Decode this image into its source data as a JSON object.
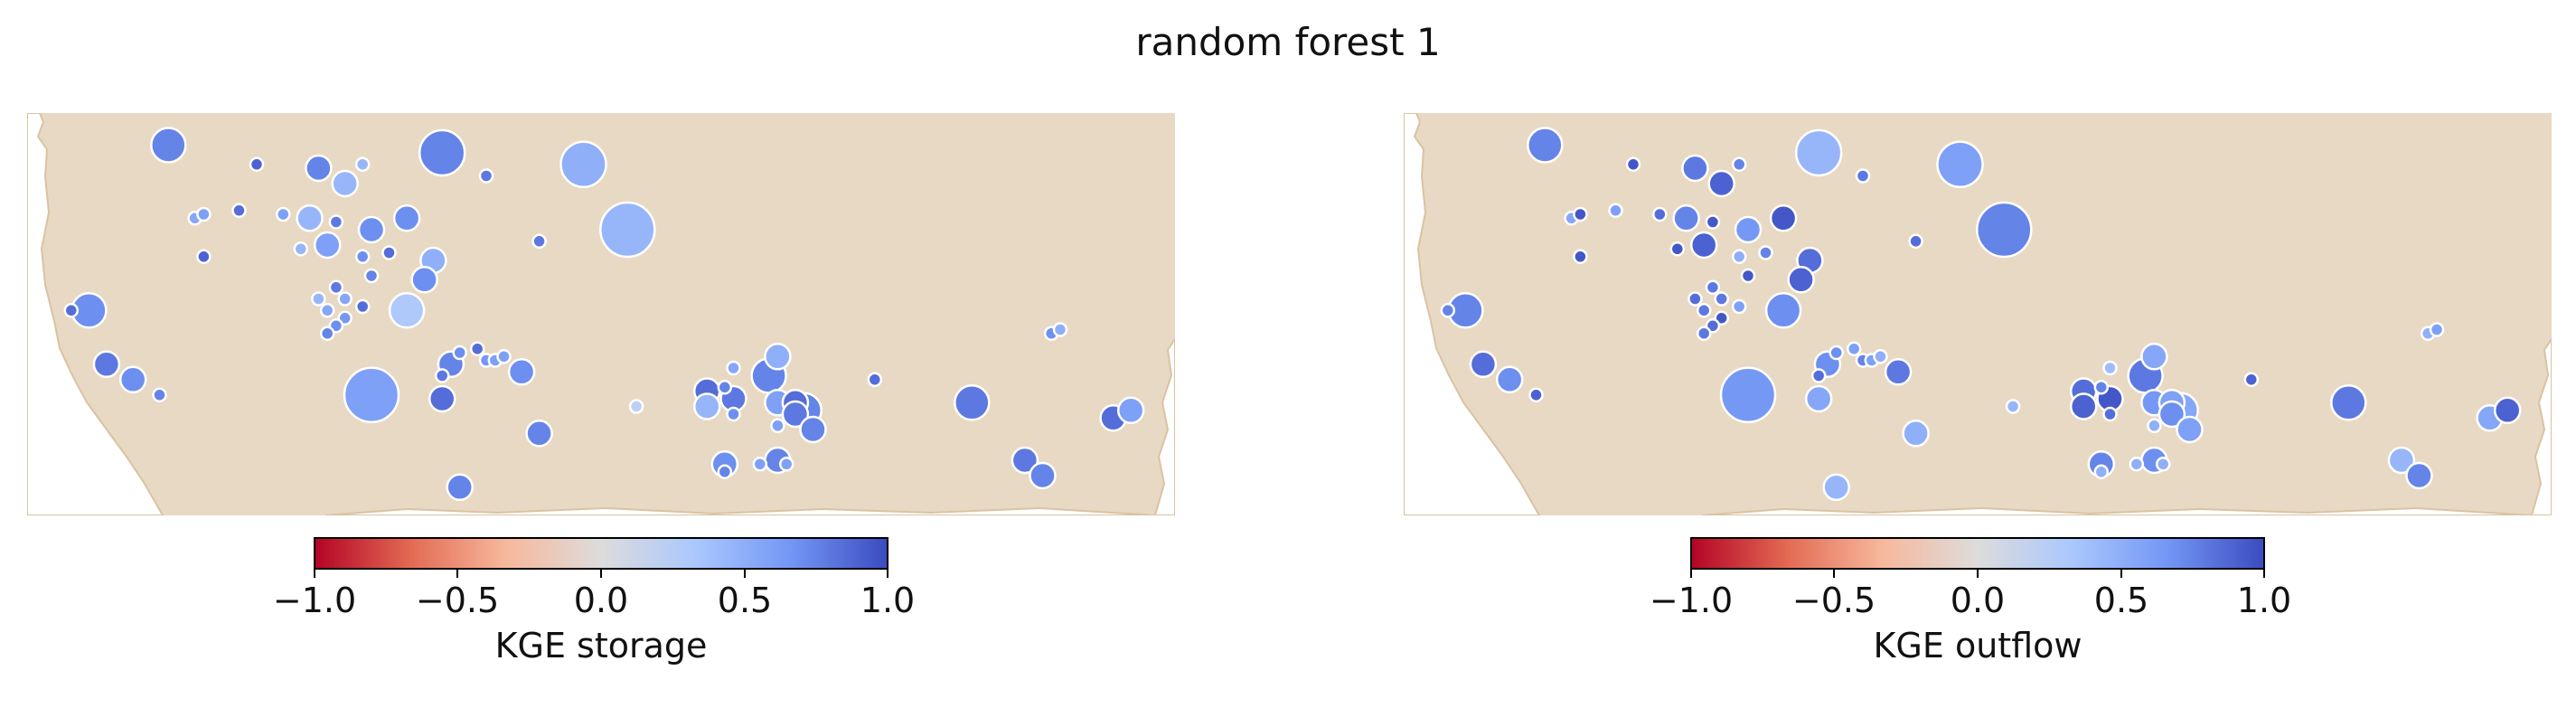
{
  "title": "random forest 1",
  "colors": {
    "land": "#e8d9c4",
    "coast": "#d9c3a3",
    "marker_edge": "#ffffff",
    "colormap": [
      "#b40426",
      "#e36a53",
      "#f7b89c",
      "#dddcdc",
      "#aac7fd",
      "#7396f5",
      "#3b4cc0"
    ]
  },
  "colorbar": {
    "ticks": [
      "−1.0",
      "−0.5",
      "0.0",
      "0.5",
      "1.0"
    ],
    "range": [
      -1.0,
      1.0
    ]
  },
  "panels": [
    {
      "colorbar_label": "KGE storage",
      "chart_data": {
        "type": "scatter",
        "description_of_values": "reservoir sites with KGE value (color) and relative size",
        "points": [
          [
            0.16,
            0.06,
            0.75,
            3
          ],
          [
            0.26,
            0.11,
            0.9,
            1
          ],
          [
            0.33,
            0.12,
            0.75,
            2
          ],
          [
            0.38,
            0.11,
            0.45,
            1
          ],
          [
            0.47,
            0.08,
            0.75,
            4
          ],
          [
            0.63,
            0.11,
            0.5,
            4
          ],
          [
            0.36,
            0.16,
            0.45,
            2
          ],
          [
            0.52,
            0.14,
            0.8,
            1
          ],
          [
            0.68,
            0.28,
            0.45,
            5
          ],
          [
            0.19,
            0.25,
            0.55,
            1
          ],
          [
            0.2,
            0.24,
            0.6,
            1
          ],
          [
            0.24,
            0.23,
            0.85,
            1
          ],
          [
            0.29,
            0.24,
            0.6,
            1
          ],
          [
            0.32,
            0.25,
            0.45,
            2
          ],
          [
            0.35,
            0.26,
            0.8,
            1
          ],
          [
            0.39,
            0.28,
            0.7,
            2
          ],
          [
            0.43,
            0.25,
            0.7,
            2
          ],
          [
            0.58,
            0.31,
            0.8,
            1
          ],
          [
            0.31,
            0.33,
            0.45,
            1
          ],
          [
            0.34,
            0.32,
            0.6,
            2
          ],
          [
            0.38,
            0.35,
            0.7,
            1
          ],
          [
            0.41,
            0.34,
            0.85,
            1
          ],
          [
            0.46,
            0.36,
            0.5,
            2
          ],
          [
            0.2,
            0.35,
            0.9,
            1
          ],
          [
            0.45,
            0.41,
            0.7,
            2
          ],
          [
            0.39,
            0.4,
            0.75,
            1
          ],
          [
            0.35,
            0.43,
            0.8,
            1
          ],
          [
            0.33,
            0.46,
            0.45,
            1
          ],
          [
            0.36,
            0.46,
            0.55,
            1
          ],
          [
            0.43,
            0.49,
            0.3,
            3
          ],
          [
            0.34,
            0.49,
            0.55,
            1
          ],
          [
            0.36,
            0.51,
            0.65,
            1
          ],
          [
            0.38,
            0.48,
            0.85,
            1
          ],
          [
            0.35,
            0.53,
            0.7,
            1
          ],
          [
            0.34,
            0.55,
            0.75,
            1
          ],
          [
            0.05,
            0.49,
            0.85,
            1
          ],
          [
            0.07,
            0.49,
            0.7,
            3
          ],
          [
            0.09,
            0.63,
            0.8,
            2
          ],
          [
            0.12,
            0.67,
            0.7,
            2
          ],
          [
            0.15,
            0.71,
            0.75,
            1
          ],
          [
            0.39,
            0.71,
            0.6,
            5
          ],
          [
            0.47,
            0.72,
            0.85,
            2
          ],
          [
            0.47,
            0.66,
            0.8,
            1
          ],
          [
            0.49,
            0.6,
            0.7,
            1
          ],
          [
            0.48,
            0.63,
            0.75,
            2
          ],
          [
            0.51,
            0.59,
            0.85,
            1
          ],
          [
            0.52,
            0.62,
            0.65,
            1
          ],
          [
            0.53,
            0.62,
            0.6,
            1
          ],
          [
            0.54,
            0.61,
            0.6,
            1
          ],
          [
            0.56,
            0.65,
            0.7,
            2
          ],
          [
            0.58,
            0.81,
            0.75,
            2
          ],
          [
            0.49,
            0.95,
            0.75,
            2
          ],
          [
            0.69,
            0.74,
            0.2,
            1
          ],
          [
            0.77,
            0.7,
            0.85,
            2
          ],
          [
            0.79,
            0.69,
            0.75,
            1
          ],
          [
            0.8,
            0.72,
            0.8,
            2
          ],
          [
            0.8,
            0.76,
            0.7,
            1
          ],
          [
            0.77,
            0.74,
            0.45,
            2
          ],
          [
            0.8,
            0.64,
            0.55,
            1
          ],
          [
            0.84,
            0.66,
            0.75,
            3
          ],
          [
            0.85,
            0.61,
            0.5,
            2
          ],
          [
            0.85,
            0.73,
            0.6,
            2
          ],
          [
            0.88,
            0.75,
            0.75,
            3
          ],
          [
            0.87,
            0.73,
            0.85,
            2
          ],
          [
            0.87,
            0.76,
            0.8,
            2
          ],
          [
            0.89,
            0.8,
            0.75,
            2
          ],
          [
            0.85,
            0.79,
            0.6,
            1
          ],
          [
            0.85,
            0.88,
            0.75,
            2
          ],
          [
            0.86,
            0.89,
            0.6,
            1
          ],
          [
            0.83,
            0.89,
            0.6,
            1
          ],
          [
            0.79,
            0.89,
            0.7,
            2
          ],
          [
            0.79,
            0.91,
            0.75,
            1
          ],
          [
            0.96,
            0.67,
            0.85,
            1
          ],
          [
            1.07,
            0.73,
            0.8,
            3
          ],
          [
            1.13,
            0.88,
            0.8,
            2
          ],
          [
            1.15,
            0.92,
            0.75,
            2
          ],
          [
            1.23,
            0.77,
            0.85,
            2
          ],
          [
            1.25,
            0.75,
            0.6,
            2
          ],
          [
            1.16,
            0.55,
            0.7,
            1
          ],
          [
            1.17,
            0.54,
            0.5,
            1
          ]
        ]
      }
    },
    {
      "colorbar_label": "KGE outflow",
      "chart_data": {
        "type": "scatter",
        "description_of_values": "reservoir sites with KGE value (color) and relative size",
        "points": [
          [
            0.16,
            0.06,
            0.75,
            3
          ],
          [
            0.26,
            0.11,
            0.95,
            1
          ],
          [
            0.33,
            0.12,
            0.8,
            2
          ],
          [
            0.38,
            0.11,
            0.75,
            1
          ],
          [
            0.47,
            0.08,
            0.45,
            4
          ],
          [
            0.63,
            0.11,
            0.6,
            4
          ],
          [
            0.36,
            0.16,
            0.9,
            2
          ],
          [
            0.52,
            0.14,
            0.8,
            1
          ],
          [
            0.68,
            0.28,
            0.75,
            5
          ],
          [
            0.19,
            0.25,
            0.55,
            1
          ],
          [
            0.2,
            0.24,
            0.95,
            1
          ],
          [
            0.24,
            0.23,
            0.6,
            1
          ],
          [
            0.29,
            0.24,
            0.85,
            1
          ],
          [
            0.32,
            0.25,
            0.75,
            2
          ],
          [
            0.35,
            0.26,
            0.95,
            1
          ],
          [
            0.39,
            0.28,
            0.65,
            2
          ],
          [
            0.43,
            0.25,
            0.95,
            2
          ],
          [
            0.58,
            0.31,
            0.85,
            1
          ],
          [
            0.31,
            0.33,
            0.95,
            1
          ],
          [
            0.34,
            0.32,
            0.9,
            2
          ],
          [
            0.38,
            0.35,
            0.5,
            1
          ],
          [
            0.41,
            0.34,
            0.75,
            1
          ],
          [
            0.46,
            0.36,
            0.85,
            2
          ],
          [
            0.2,
            0.35,
            0.95,
            1
          ],
          [
            0.45,
            0.41,
            0.9,
            2
          ],
          [
            0.39,
            0.4,
            0.95,
            1
          ],
          [
            0.35,
            0.43,
            0.8,
            1
          ],
          [
            0.33,
            0.46,
            0.85,
            1
          ],
          [
            0.36,
            0.46,
            0.8,
            1
          ],
          [
            0.43,
            0.49,
            0.7,
            3
          ],
          [
            0.34,
            0.49,
            0.8,
            1
          ],
          [
            0.36,
            0.51,
            0.95,
            1
          ],
          [
            0.38,
            0.48,
            0.6,
            1
          ],
          [
            0.35,
            0.53,
            0.85,
            1
          ],
          [
            0.34,
            0.55,
            0.8,
            1
          ],
          [
            0.05,
            0.49,
            0.75,
            1
          ],
          [
            0.07,
            0.49,
            0.75,
            3
          ],
          [
            0.09,
            0.63,
            0.85,
            2
          ],
          [
            0.12,
            0.67,
            0.7,
            2
          ],
          [
            0.15,
            0.71,
            0.9,
            1
          ],
          [
            0.39,
            0.71,
            0.65,
            5
          ],
          [
            0.47,
            0.72,
            0.55,
            2
          ],
          [
            0.47,
            0.66,
            0.85,
            1
          ],
          [
            0.49,
            0.6,
            0.7,
            1
          ],
          [
            0.48,
            0.63,
            0.7,
            2
          ],
          [
            0.51,
            0.59,
            0.6,
            1
          ],
          [
            0.52,
            0.62,
            0.75,
            1
          ],
          [
            0.53,
            0.62,
            0.6,
            1
          ],
          [
            0.54,
            0.61,
            0.5,
            1
          ],
          [
            0.56,
            0.65,
            0.8,
            2
          ],
          [
            0.58,
            0.81,
            0.5,
            2
          ],
          [
            0.49,
            0.95,
            0.45,
            2
          ],
          [
            0.69,
            0.74,
            0.45,
            1
          ],
          [
            0.77,
            0.7,
            0.85,
            2
          ],
          [
            0.79,
            0.69,
            0.75,
            1
          ],
          [
            0.8,
            0.72,
            0.95,
            2
          ],
          [
            0.8,
            0.76,
            0.85,
            1
          ],
          [
            0.77,
            0.74,
            0.9,
            2
          ],
          [
            0.8,
            0.64,
            0.4,
            1
          ],
          [
            0.84,
            0.66,
            0.8,
            3
          ],
          [
            0.85,
            0.61,
            0.55,
            2
          ],
          [
            0.85,
            0.73,
            0.65,
            2
          ],
          [
            0.88,
            0.75,
            0.55,
            3
          ],
          [
            0.87,
            0.73,
            0.6,
            2
          ],
          [
            0.87,
            0.76,
            0.7,
            2
          ],
          [
            0.89,
            0.8,
            0.6,
            2
          ],
          [
            0.85,
            0.79,
            0.5,
            1
          ],
          [
            0.85,
            0.88,
            0.7,
            2
          ],
          [
            0.86,
            0.89,
            0.5,
            1
          ],
          [
            0.83,
            0.89,
            0.5,
            1
          ],
          [
            0.79,
            0.89,
            0.75,
            2
          ],
          [
            0.79,
            0.91,
            0.5,
            1
          ],
          [
            0.96,
            0.67,
            0.9,
            1
          ],
          [
            1.07,
            0.73,
            0.8,
            3
          ],
          [
            1.13,
            0.88,
            0.45,
            2
          ],
          [
            1.15,
            0.92,
            0.75,
            2
          ],
          [
            1.23,
            0.77,
            0.55,
            2
          ],
          [
            1.25,
            0.75,
            0.9,
            2
          ],
          [
            1.16,
            0.55,
            0.5,
            1
          ],
          [
            1.17,
            0.54,
            0.6,
            1
          ]
        ]
      }
    }
  ]
}
